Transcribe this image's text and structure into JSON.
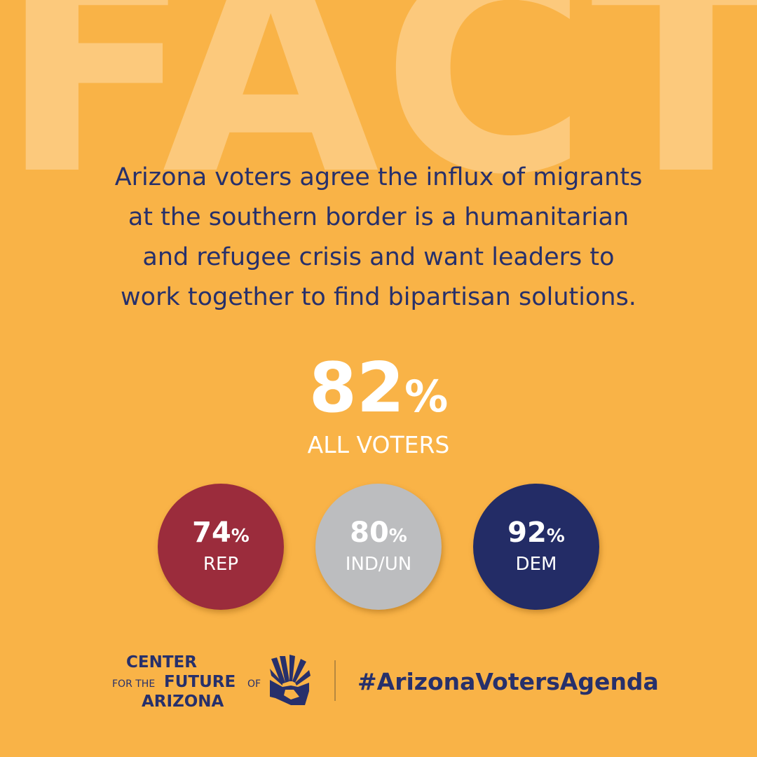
{
  "background_word": "FACT",
  "statement": {
    "lines": [
      "Arizona voters agree the influx of migrants",
      "at the southern border is a humanitarian",
      "and refugee crisis and want leaders to",
      "work together to find bipartisan solutions."
    ]
  },
  "headline_stat": {
    "value": 82,
    "unit": "%",
    "label": "ALL VOTERS"
  },
  "party_stats": [
    {
      "value": 74,
      "unit": "%",
      "label": "REP"
    },
    {
      "value": 80,
      "unit": "%",
      "label": "IND/UN"
    },
    {
      "value": 92,
      "unit": "%",
      "label": "DEM"
    }
  ],
  "logo": {
    "line1": "CENTER",
    "line2_small": "FOR THE",
    "line2_big": "FUTURE",
    "line2_end": "OF",
    "line3": "ARIZONA"
  },
  "hashtag": "#ArizonaVotersAgenda"
}
